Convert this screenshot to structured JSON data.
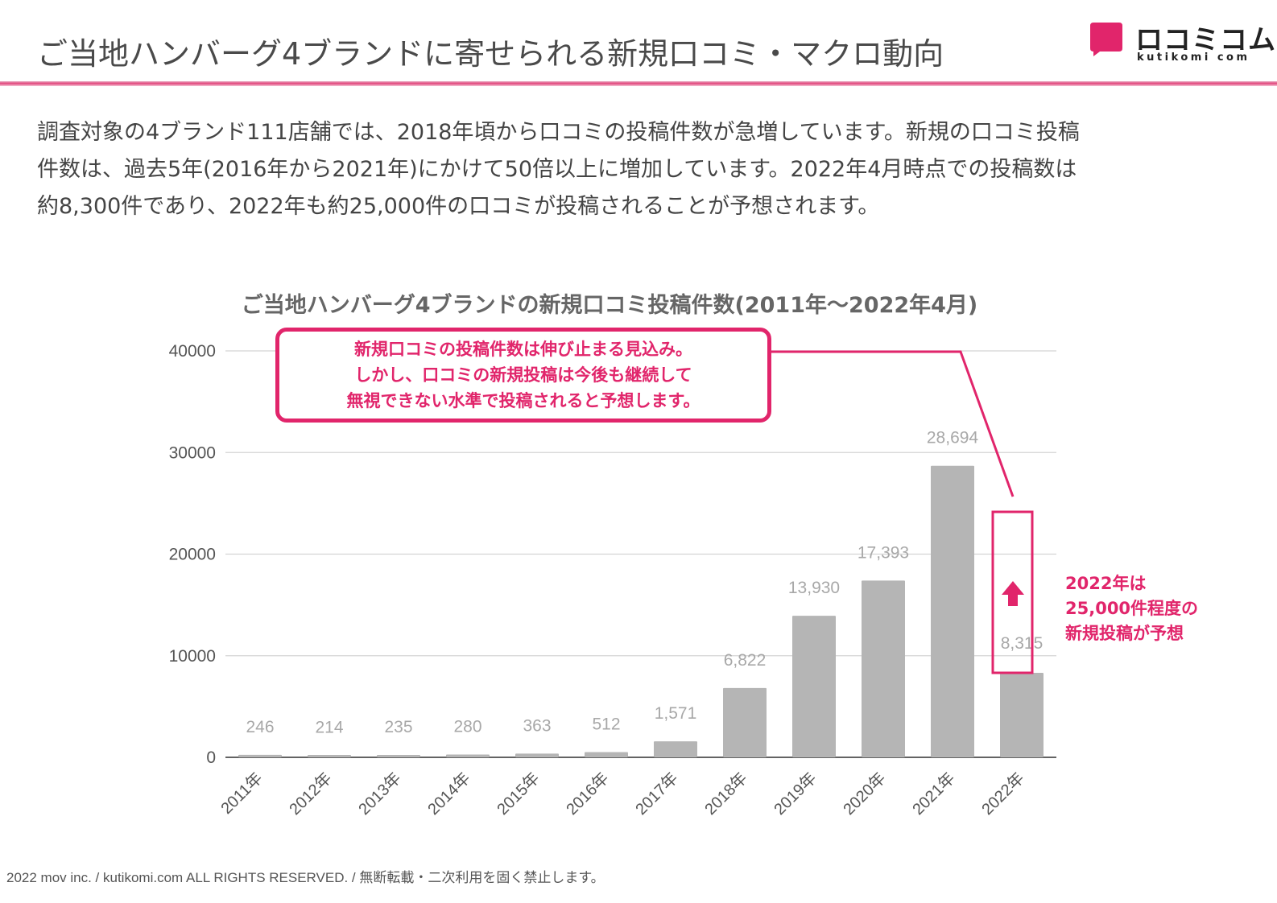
{
  "header": {
    "title": "ご当地ハンバーグ4ブランドに寄せられる新規口コミ・マクロ動向"
  },
  "logo": {
    "name_jp": "ロコミコム",
    "name_en": "kutikomi com",
    "brand_color": "#e1256b"
  },
  "intro": {
    "lines": [
      "調査対象の4ブランド111店舗では、2018年頃から口コミの投稿件数が急増しています。新規の口コミ投稿",
      "件数は、過去5年(2016年から2021年)にかけて50倍以上に増加しています。2022年4月時点での投稿数は",
      "約8,300件であり、2022年も約25,000件の口コミが投稿されることが予想されます。"
    ]
  },
  "callout": {
    "lines": [
      "新規口コミの投稿件数は伸び止まる見込み。",
      "しかし、口コミの新規投稿は今後も継続して",
      "無視できない水準で投稿されると予想します。"
    ]
  },
  "side_note": {
    "lines": [
      "2022年は",
      "25,000件程度の",
      "新規投稿が予想"
    ],
    "arrow_icon": "up-arrow-icon"
  },
  "chart_data": {
    "type": "bar",
    "title": "ご当地ハンバーグ4ブランドの新規口コミ投稿件数(2011年～2022年4月)",
    "categories": [
      "2011年",
      "2012年",
      "2013年",
      "2014年",
      "2015年",
      "2016年",
      "2017年",
      "2018年",
      "2019年",
      "2020年",
      "2021年",
      "2022年"
    ],
    "values": [
      246,
      214,
      235,
      280,
      363,
      512,
      1571,
      6822,
      13930,
      17393,
      28694,
      8315
    ],
    "data_labels": [
      "246",
      "214",
      "235",
      "280",
      "363",
      "512",
      "1,571",
      "6,822",
      "13,930",
      "17,393",
      "28,694",
      "8,315"
    ],
    "yticks": [
      0,
      10000,
      20000,
      30000,
      40000
    ],
    "ytick_labels": [
      "0",
      "10000",
      "20000",
      "30000",
      "40000"
    ],
    "ylim": [
      0,
      40000
    ],
    "xlabel": "",
    "ylabel": "",
    "grid": true,
    "bar_color": "#b5b5b5",
    "highlight_color": "#e1256b",
    "projection_2022": 25000
  },
  "footer": {
    "text": "2022 mov inc. / kutikomi.com ALL RIGHTS RESERVED. / 無断転載・二次利用を固く禁止します。"
  }
}
